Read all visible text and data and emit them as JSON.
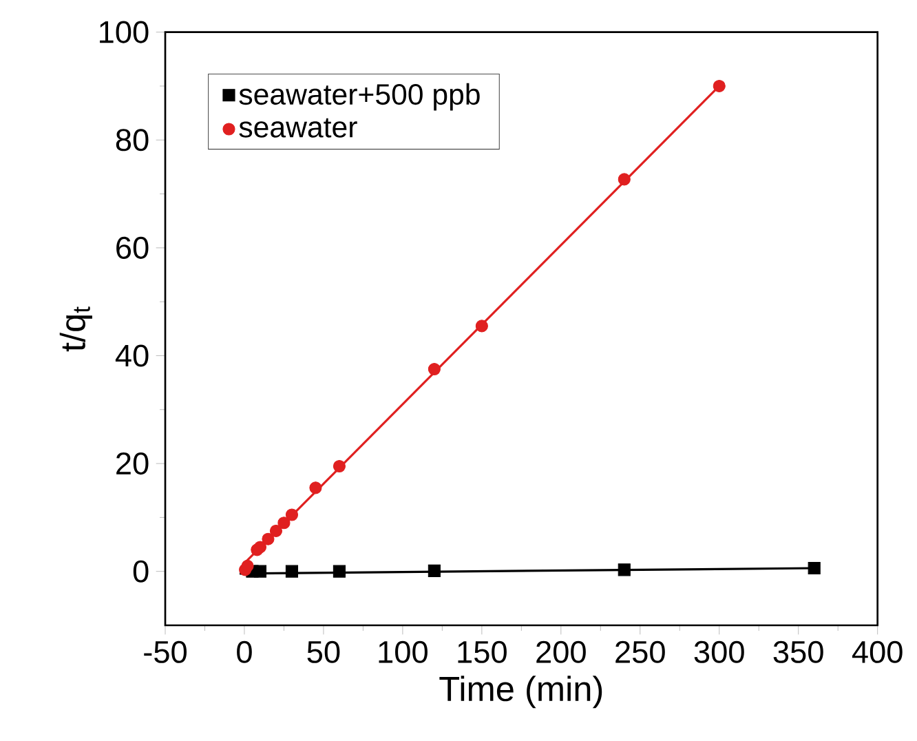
{
  "chart_data": {
    "type": "scatter",
    "xlabel": "Time (min)",
    "ylabel": "t/q$_{t}$",
    "xlim": [
      -50,
      400
    ],
    "xticks": [
      -50,
      0,
      50,
      100,
      150,
      200,
      250,
      300,
      350,
      400
    ],
    "ylim": [
      -10,
      100
    ],
    "yticks": [
      0,
      20,
      40,
      60,
      80,
      100
    ],
    "legend": "top left",
    "grid": false,
    "series": [
      {
        "name": "seawater+500 ppb",
        "marker": "square",
        "color": "#000000",
        "x": [
          5,
          10,
          30,
          60,
          120,
          240,
          360
        ],
        "values": [
          0,
          0,
          0,
          0,
          0.1,
          0.3,
          0.6
        ]
      },
      {
        "name": "seawater",
        "type": "scatter",
        "marker": "circle",
        "color": "#e02020",
        "x": [
          0.5,
          2,
          8,
          10,
          15,
          20,
          25,
          30,
          45,
          60,
          120,
          150,
          240,
          300
        ],
        "values": [
          0.3,
          1,
          4,
          4.5,
          6,
          7.5,
          9,
          10.5,
          15.5,
          19.5,
          37.5,
          45.5,
          72.7,
          90
        ]
      },
      {
        "type": "line",
        "marker": "none",
        "color": "#000000",
        "x": [
          -3,
          360
        ],
        "values": [
          -0.4,
          0.6
        ]
      },
      {
        "type": "line",
        "marker": "none",
        "color": "#e02020",
        "x": [
          0,
          300
        ],
        "values": [
          1.5,
          90
        ]
      }
    ]
  }
}
